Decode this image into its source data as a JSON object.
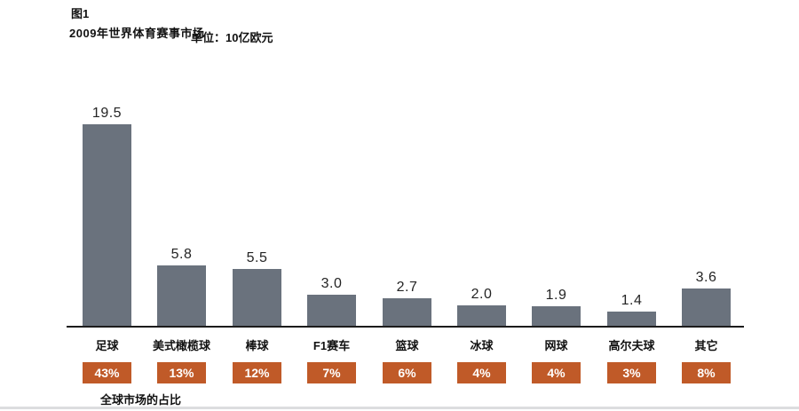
{
  "header": {
    "figure_label": "图1",
    "title": "2009年世界体育赛事市场",
    "unit": "单位：10亿欧元"
  },
  "chart_data": {
    "type": "bar",
    "title": "2009年世界体育赛事市场",
    "unit_label": "单位：10亿欧元",
    "categories": [
      "足球",
      "美式橄榄球",
      "棒球",
      "F1赛车",
      "篮球",
      "冰球",
      "网球",
      "高尔夫球",
      "其它"
    ],
    "values": [
      19.5,
      5.8,
      5.5,
      3.0,
      2.7,
      2.0,
      1.9,
      1.4,
      3.6
    ],
    "value_labels": [
      "19.5",
      "5.8",
      "5.5",
      "3.0",
      "2.7",
      "2.0",
      "1.9",
      "1.4",
      "3.6"
    ],
    "share_labels": [
      "43%",
      "13%",
      "12%",
      "7%",
      "6%",
      "4%",
      "4%",
      "3%",
      "8%"
    ],
    "share_row_caption": "全球市场的占比",
    "ylim": [
      0,
      20
    ],
    "grid": "off",
    "legend": "none",
    "bar_color": "#6a727d",
    "badge_color": "#c05a28",
    "axis_color": "#1c1c1c"
  },
  "footer": {
    "note": "全球市场的占比"
  }
}
